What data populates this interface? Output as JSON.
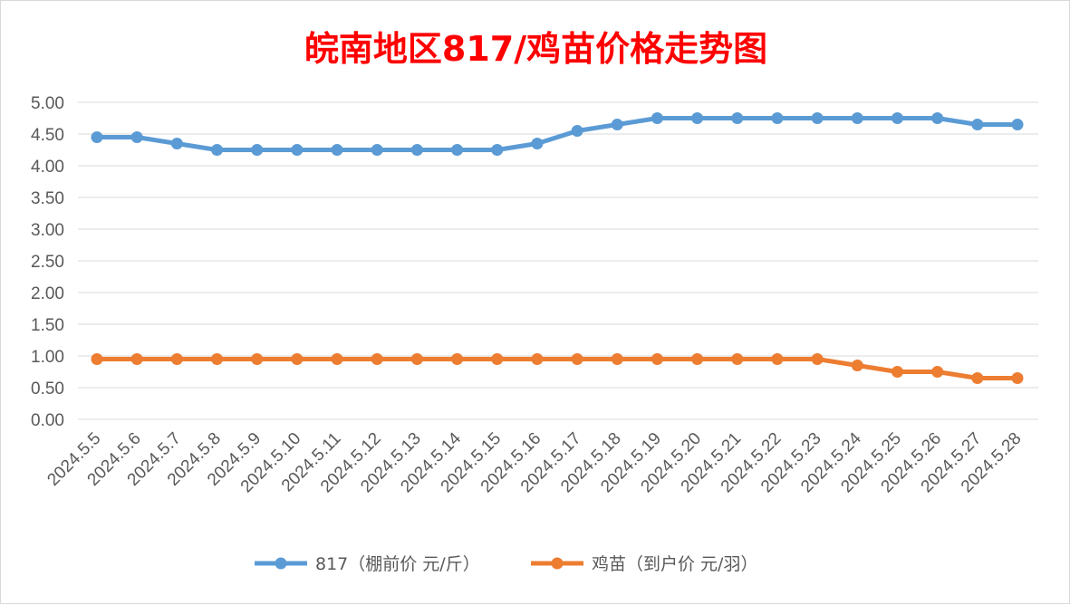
{
  "chart_data": {
    "type": "line",
    "title": "皖南地区817/鸡苗价格走势图",
    "xlabel": "",
    "ylabel": "",
    "ylim": [
      0,
      5
    ],
    "ytick_step": 0.5,
    "y_ticks": [
      "0.00",
      "0.50",
      "1.00",
      "1.50",
      "2.00",
      "2.50",
      "3.00",
      "3.50",
      "4.00",
      "4.50",
      "5.00"
    ],
    "grid": true,
    "legend_position": "bottom",
    "categories": [
      "2024.5.5",
      "2024.5.6",
      "2024.5.7",
      "2024.5.8",
      "2024.5.9",
      "2024.5.10",
      "2024.5.11",
      "2024.5.12",
      "2024.5.13",
      "2024.5.14",
      "2024.5.15",
      "2024.5.16",
      "2024.5.17",
      "2024.5.18",
      "2024.5.19",
      "2024.5.20",
      "2024.5.21",
      "2024.5.22",
      "2024.5.23",
      "2024.5.24",
      "2024.5.25",
      "2024.5.26",
      "2024.5.27",
      "2024.5.28"
    ],
    "series": [
      {
        "name": "817（棚前价 元/斤）",
        "color": "#5b9bd5",
        "values": [
          4.45,
          4.45,
          4.35,
          4.25,
          4.25,
          4.25,
          4.25,
          4.25,
          4.25,
          4.25,
          4.25,
          4.35,
          4.55,
          4.65,
          4.75,
          4.75,
          4.75,
          4.75,
          4.75,
          4.75,
          4.75,
          4.75,
          4.65,
          4.65
        ]
      },
      {
        "name": "鸡苗（到户价 元/羽）",
        "color": "#ed7d31",
        "values": [
          0.95,
          0.95,
          0.95,
          0.95,
          0.95,
          0.95,
          0.95,
          0.95,
          0.95,
          0.95,
          0.95,
          0.95,
          0.95,
          0.95,
          0.95,
          0.95,
          0.95,
          0.95,
          0.95,
          0.85,
          0.75,
          0.75,
          0.65,
          0.65
        ]
      }
    ]
  }
}
